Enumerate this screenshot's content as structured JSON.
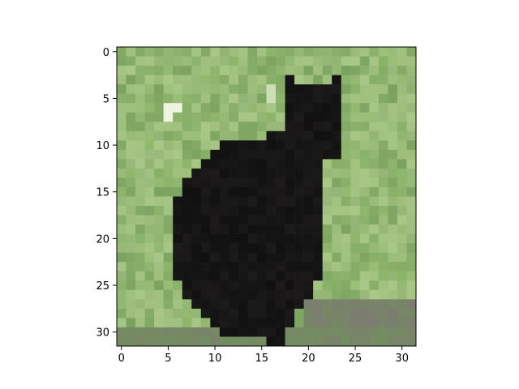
{
  "figure": {
    "image_description_alt": "",
    "xaxis": {
      "ticks": [
        "0",
        "5",
        "10",
        "15",
        "20",
        "25",
        "30"
      ],
      "range": [
        -0.5,
        31.5
      ]
    },
    "yaxis": {
      "ticks": [
        "0",
        "5",
        "10",
        "15",
        "20",
        "25",
        "30"
      ],
      "range": [
        31.5,
        -0.5
      ],
      "inverted": true
    },
    "image_grid": {
      "cols": 32,
      "rows": 32
    },
    "colors": {
      "grass_light": "#a9c887",
      "grass_mid": "#8db46b",
      "grass_dark": "#6f9657",
      "cat_black": "#111111",
      "cat_dark": "#1c1a1a",
      "ground_gray": "#7d7a73",
      "highlight": "#eef4e0"
    }
  }
}
